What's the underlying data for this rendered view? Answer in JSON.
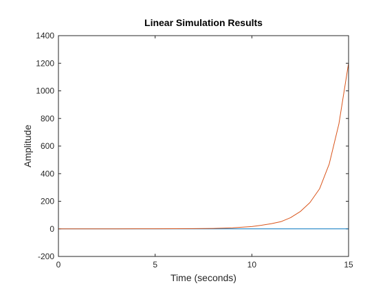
{
  "chart_data": {
    "type": "line",
    "title": "Linear Simulation Results",
    "xlabel": "Time (seconds)",
    "ylabel": "Amplitude",
    "xlim": [
      0,
      15
    ],
    "ylim": [
      -200,
      1400
    ],
    "xticks": [
      0,
      5,
      10,
      15
    ],
    "yticks": [
      -200,
      0,
      200,
      400,
      600,
      800,
      1000,
      1200,
      1400
    ],
    "grid": false,
    "series": [
      {
        "color": "#0072BD",
        "x": [
          0,
          15
        ],
        "y": [
          0,
          0
        ]
      },
      {
        "color": "#D95319",
        "x": [
          0,
          1,
          2,
          3,
          4,
          5,
          6,
          7,
          8,
          9,
          10,
          10.5,
          11,
          11.5,
          12,
          12.5,
          13,
          13.5,
          14,
          14.5,
          15
        ],
        "y": [
          0,
          0.05,
          0.1,
          0.2,
          0.35,
          0.6,
          1,
          1.8,
          3.2,
          7.2,
          17,
          26,
          37,
          52,
          81,
          125,
          190,
          290,
          470,
          760,
          1200
        ]
      }
    ]
  }
}
